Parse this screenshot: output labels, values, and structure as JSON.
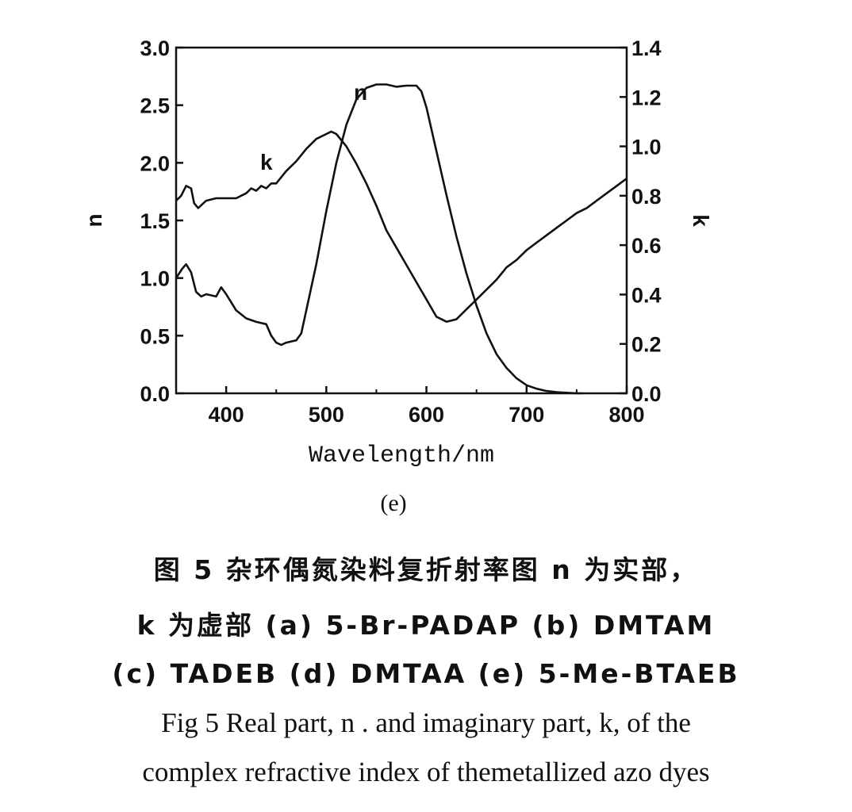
{
  "chart_data": {
    "type": "line",
    "panel_label": "(e)",
    "xlabel": "Wavelength/nm",
    "xlim": [
      350,
      800
    ],
    "xticks": [
      400,
      500,
      600,
      700,
      800
    ],
    "ylabel_left": "n",
    "ylim_left": [
      0.0,
      3.0
    ],
    "yticks_left": [
      "0.0",
      "0.5",
      "1.0",
      "1.5",
      "2.0",
      "2.5",
      "3.0"
    ],
    "ylabel_right": "k",
    "ylim_right": [
      0.0,
      1.4
    ],
    "yticks_right": [
      "0.0",
      "0.2",
      "0.4",
      "0.6",
      "0.8",
      "1.0",
      "1.2",
      "1.4"
    ],
    "grid": false,
    "series": [
      {
        "name": "n",
        "axis": "left",
        "x": [
          350,
          356,
          360,
          365,
          370,
          375,
          380,
          390,
          395,
          400,
          410,
          420,
          430,
          440,
          445,
          450,
          455,
          460,
          470,
          475,
          480,
          490,
          500,
          510,
          520,
          530,
          540,
          550,
          560,
          570,
          580,
          590,
          595,
          600,
          610,
          620,
          630,
          640,
          650,
          660,
          670,
          680,
          690,
          700,
          710,
          720,
          730,
          740,
          750,
          755
        ],
        "values": [
          1.0,
          1.08,
          1.12,
          1.05,
          0.88,
          0.84,
          0.86,
          0.84,
          0.92,
          0.86,
          0.72,
          0.65,
          0.62,
          0.6,
          0.5,
          0.44,
          0.42,
          0.44,
          0.46,
          0.52,
          0.72,
          1.12,
          1.58,
          2.0,
          2.33,
          2.55,
          2.65,
          2.68,
          2.68,
          2.66,
          2.67,
          2.67,
          2.62,
          2.48,
          2.1,
          1.72,
          1.36,
          1.04,
          0.76,
          0.52,
          0.34,
          0.22,
          0.13,
          0.07,
          0.04,
          0.02,
          0.01,
          0.005,
          0.0,
          0.0
        ]
      },
      {
        "name": "k",
        "axis": "right",
        "x": [
          350,
          355,
          360,
          365,
          368,
          372,
          380,
          390,
          400,
          410,
          420,
          425,
          430,
          435,
          440,
          445,
          450,
          460,
          470,
          480,
          490,
          500,
          505,
          510,
          520,
          530,
          540,
          550,
          560,
          570,
          580,
          590,
          600,
          610,
          615,
          620,
          630,
          640,
          650,
          660,
          670,
          680,
          690,
          700,
          710,
          720,
          730,
          740,
          750,
          760,
          770,
          780,
          790,
          800
        ],
        "values": [
          0.78,
          0.8,
          0.84,
          0.83,
          0.77,
          0.75,
          0.78,
          0.79,
          0.79,
          0.79,
          0.81,
          0.83,
          0.82,
          0.84,
          0.83,
          0.85,
          0.85,
          0.9,
          0.94,
          0.99,
          1.03,
          1.05,
          1.06,
          1.05,
          1.0,
          0.93,
          0.85,
          0.76,
          0.66,
          0.59,
          0.52,
          0.45,
          0.38,
          0.31,
          0.3,
          0.29,
          0.3,
          0.34,
          0.38,
          0.42,
          0.46,
          0.51,
          0.54,
          0.58,
          0.61,
          0.64,
          0.67,
          0.7,
          0.73,
          0.75,
          0.78,
          0.81,
          0.84,
          0.87
        ]
      }
    ]
  },
  "caption": {
    "cn_line1": "图 5  杂环偶氮染料复折射率图 n 为实部，",
    "cn_line2": "k 为虚部 (a) 5-Br-PADAP (b) DMTAM",
    "cn_line3": "(c) TADEB (d) DMTAA (e) 5-Me-BTAEB",
    "en_line1": "Fig 5  Real part, n .  and imaginary part, k, of the",
    "en_line2": "complex refractive index of themetallized azo dyes"
  }
}
